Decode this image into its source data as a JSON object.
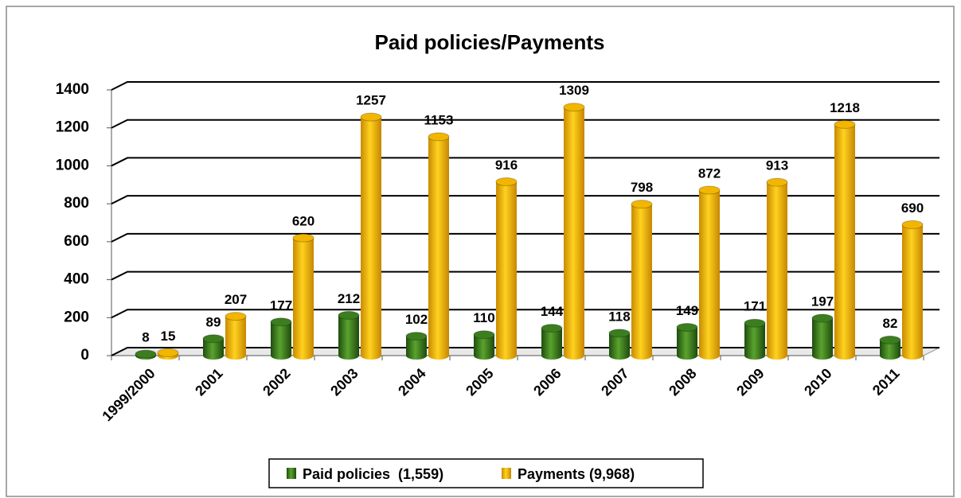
{
  "chart_data": {
    "type": "bar3d",
    "title": "Paid policies/Payments",
    "categories": [
      "1999/2000",
      "2001",
      "2002",
      "2003",
      "2004",
      "2005",
      "2006",
      "2007",
      "2008",
      "2009",
      "2010",
      "2011"
    ],
    "series": [
      {
        "name": "Paid policies  (1,559)",
        "color": "#3b7d1f",
        "values": [
          8,
          89,
          177,
          212,
          102,
          110,
          144,
          118,
          149,
          171,
          197,
          82
        ]
      },
      {
        "name": "Payments (9,968)",
        "color": "#f2b600",
        "values": [
          15,
          207,
          620,
          1257,
          1153,
          916,
          1309,
          798,
          872,
          913,
          1218,
          690
        ]
      }
    ],
    "ylim": [
      0,
      1400
    ],
    "yticks": [
      0,
      200,
      400,
      600,
      800,
      1000,
      1200,
      1400
    ],
    "grid": true,
    "legend": "bottom"
  }
}
